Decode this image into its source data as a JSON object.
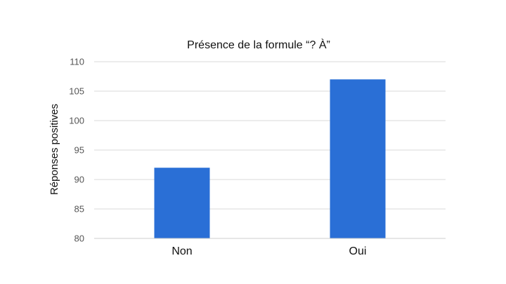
{
  "chart_data": {
    "type": "bar",
    "title": "Présence de la formule “? À”",
    "xlabel": "",
    "ylabel": "Réponses positives",
    "categories": [
      "Non",
      "Oui"
    ],
    "values": [
      92,
      107
    ],
    "ylim": [
      80,
      110
    ],
    "yticks": [
      "80",
      "85",
      "90",
      "95",
      "100",
      "105",
      "110"
    ],
    "grid": true,
    "legend": "none",
    "bar_color": "#2a6fd6"
  }
}
